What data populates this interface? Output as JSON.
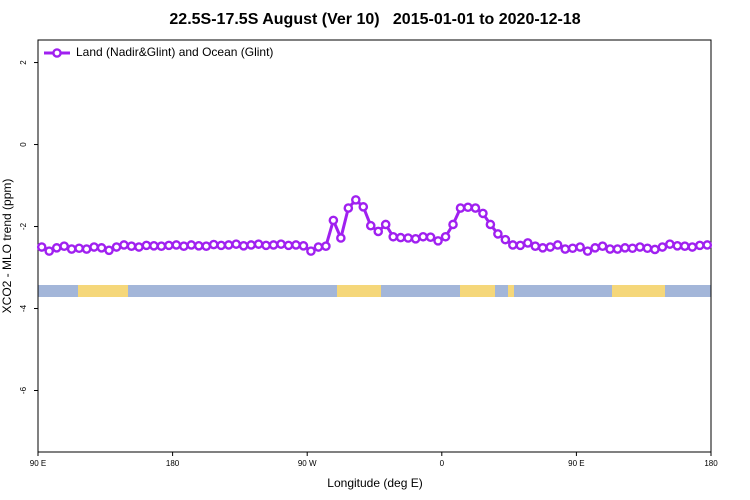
{
  "chart_data": {
    "type": "line",
    "title": "22.5S-17.5S August (Ver 10)   2015-01-01 to 2020-12-18",
    "x_label": "Longitude (deg E)",
    "y_label": "XCO2 - MLO trend (ppm)",
    "xlim": [
      90,
      540
    ],
    "ylim": [
      -7.5,
      2.55
    ],
    "xticks": [
      {
        "value": 90,
        "label": "90 E"
      },
      {
        "value": 180,
        "label": "180"
      },
      {
        "value": 270,
        "label": "90 W"
      },
      {
        "value": 360,
        "label": "0"
      },
      {
        "value": 450,
        "label": "90 E"
      },
      {
        "value": 540,
        "label": "180"
      }
    ],
    "yticks": [
      2,
      0,
      -2,
      -4,
      -6
    ],
    "legend_position": "top-left",
    "x": [
      92.5,
      97.5,
      102.5,
      107.5,
      112.5,
      117.5,
      122.5,
      127.5,
      132.5,
      137.5,
      142.5,
      147.5,
      152.5,
      157.5,
      162.5,
      167.5,
      172.5,
      177.5,
      182.5,
      187.5,
      192.5,
      197.5,
      202.5,
      207.5,
      212.5,
      217.5,
      222.5,
      227.5,
      232.5,
      237.5,
      242.5,
      247.5,
      252.5,
      257.5,
      262.5,
      267.5,
      272.5,
      277.5,
      282.5,
      287.5,
      292.5,
      297.5,
      302.5,
      307.5,
      312.5,
      317.5,
      322.5,
      327.5,
      332.5,
      337.5,
      342.5,
      347.5,
      352.5,
      357.5,
      362.5,
      367.5,
      372.5,
      377.5,
      382.5,
      387.5,
      392.5,
      397.5,
      402.5,
      407.5,
      412.5,
      417.5,
      422.5,
      427.5,
      432.5,
      437.5,
      442.5,
      447.5,
      452.5,
      457.5,
      462.5,
      467.5,
      472.5,
      477.5,
      482.5,
      487.5,
      492.5,
      497.5,
      502.5,
      507.5,
      512.5,
      517.5,
      522.5,
      527.5,
      532.5,
      537.5
    ],
    "series": [
      {
        "name": "Land (Nadir&Glint) and Ocean (Glint)",
        "color": "#a020f0",
        "values": [
          -2.5,
          -2.6,
          -2.52,
          -2.48,
          -2.55,
          -2.53,
          -2.55,
          -2.5,
          -2.52,
          -2.58,
          -2.5,
          -2.45,
          -2.48,
          -2.5,
          -2.46,
          -2.47,
          -2.48,
          -2.46,
          -2.45,
          -2.48,
          -2.45,
          -2.47,
          -2.48,
          -2.44,
          -2.46,
          -2.45,
          -2.43,
          -2.47,
          -2.45,
          -2.43,
          -2.46,
          -2.45,
          -2.43,
          -2.46,
          -2.45,
          -2.47,
          -2.6,
          -2.5,
          -2.48,
          -1.85,
          -2.28,
          -1.55,
          -1.35,
          -1.52,
          -1.98,
          -2.12,
          -1.95,
          -2.25,
          -2.27,
          -2.28,
          -2.3,
          -2.25,
          -2.26,
          -2.35,
          -2.25,
          -1.95,
          -1.55,
          -1.53,
          -1.55,
          -1.68,
          -1.95,
          -2.18,
          -2.32,
          -2.45,
          -2.46,
          -2.4,
          -2.48,
          -2.52,
          -2.5,
          -2.45,
          -2.55,
          -2.53,
          -2.5,
          -2.6,
          -2.52,
          -2.48,
          -2.55,
          -2.55,
          -2.52,
          -2.53,
          -2.5,
          -2.53,
          -2.56,
          -2.5,
          -2.43,
          -2.47,
          -2.48,
          -2.5,
          -2.46,
          -2.45
        ]
      }
    ]
  }
}
